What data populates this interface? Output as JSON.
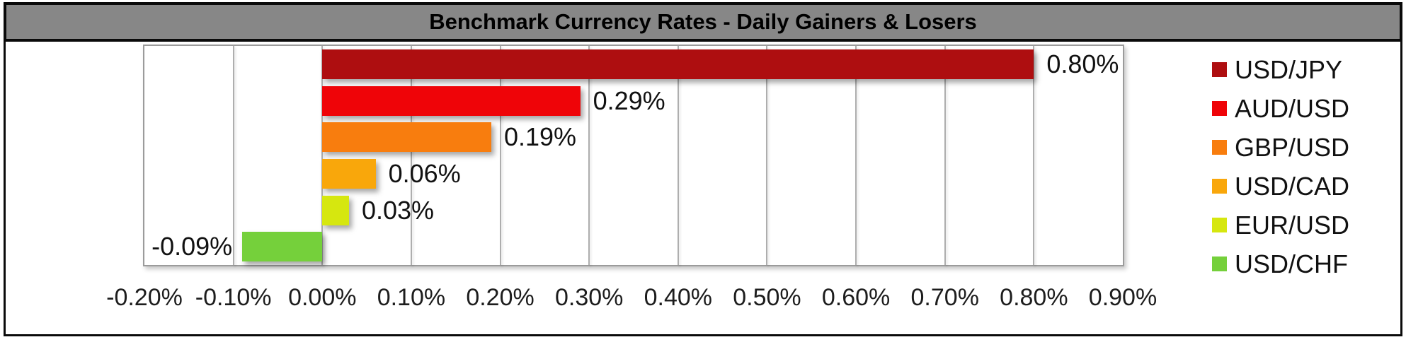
{
  "chart": {
    "title": "Benchmark Currency Rates - Daily Gainers & Losers"
  },
  "chart_data": {
    "type": "bar",
    "orientation": "horizontal",
    "title": "Benchmark Currency Rates - Daily Gainers & Losers",
    "categories": [
      "USD/JPY",
      "AUD/USD",
      "GBP/USD",
      "USD/CAD",
      "EUR/USD",
      "USD/CHF"
    ],
    "values": [
      0.8,
      0.29,
      0.19,
      0.06,
      0.03,
      -0.09
    ],
    "data_labels": [
      "0.80%",
      "0.29%",
      "0.19%",
      "0.06%",
      "0.03%",
      "-0.09%"
    ],
    "bar_colors": [
      "#AE0E10",
      "#EF0408",
      "#F87D0E",
      "#F9A70B",
      "#D6E70F",
      "#75D03B"
    ],
    "x_ticks": [
      "-0.20%",
      "-0.10%",
      "0.00%",
      "0.10%",
      "0.20%",
      "0.30%",
      "0.40%",
      "0.50%",
      "0.60%",
      "0.70%",
      "0.80%",
      "0.90%"
    ],
    "xlim": [
      -0.2,
      0.9
    ],
    "tick_step": 0.1,
    "grid": "vertical",
    "legend_position": "right",
    "legend": [
      "USD/JPY",
      "AUD/USD",
      "GBP/USD",
      "USD/CAD",
      "EUR/USD",
      "USD/CHF"
    ]
  },
  "colors": {
    "title_bar_bg": "#878787",
    "title_text": "#000000",
    "outer_border": "#0a0a0a",
    "plot_border": "#9b9b9b",
    "gridline": "#aeaeae",
    "label_text": "#111111"
  }
}
